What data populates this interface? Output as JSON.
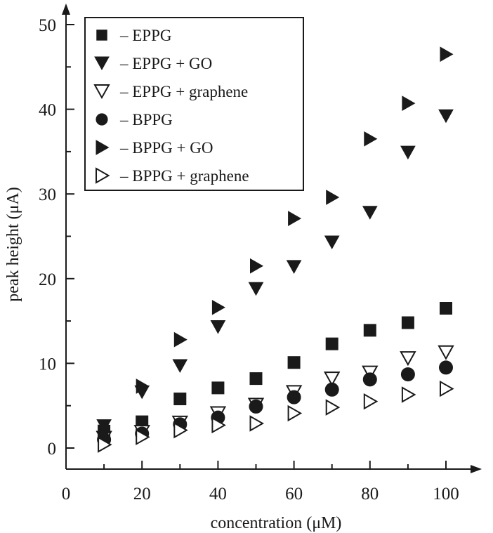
{
  "chart_data": {
    "type": "scatter",
    "xlabel": "concentration (μM)",
    "ylabel": "peak height (μA)",
    "xlim": [
      0,
      110
    ],
    "ylim": [
      -2.5,
      53
    ],
    "xticks": [
      "0",
      "20",
      "40",
      "60",
      "80",
      "100"
    ],
    "yticks": [
      "0",
      "10",
      "20",
      "30",
      "40",
      "50"
    ],
    "legend_position": "top-left",
    "grid": false,
    "colors": {
      "marker": "#1a1a1a",
      "axis": "#1a1a1a",
      "background": "#ffffff"
    },
    "series": [
      {
        "name": "– EPPG",
        "marker": "square-filled",
        "x": [
          10,
          20,
          30,
          40,
          50,
          60,
          70,
          80,
          90,
          100
        ],
        "y": [
          2.0,
          3.1,
          5.8,
          7.1,
          8.2,
          10.1,
          12.3,
          13.9,
          14.8,
          16.5
        ]
      },
      {
        "name": "– EPPG + GO",
        "marker": "triangle-down-filled",
        "x": [
          10,
          20,
          30,
          40,
          50,
          60,
          70,
          80,
          90,
          100
        ],
        "y": [
          2.6,
          6.6,
          9.7,
          14.3,
          18.8,
          21.4,
          24.3,
          27.8,
          34.9,
          39.2
        ]
      },
      {
        "name": "– EPPG + graphene",
        "marker": "triangle-down-open",
        "x": [
          10,
          20,
          30,
          40,
          50,
          60,
          70,
          80,
          90,
          100
        ],
        "y": [
          1.2,
          1.9,
          3.0,
          4.1,
          5.1,
          6.6,
          8.2,
          8.9,
          10.6,
          11.3
        ]
      },
      {
        "name": "– BPPG",
        "marker": "circle-filled",
        "x": [
          10,
          20,
          30,
          40,
          50,
          60,
          70,
          80,
          90,
          100
        ],
        "y": [
          1.0,
          1.7,
          2.8,
          3.6,
          4.9,
          6.0,
          6.9,
          8.1,
          8.7,
          9.5
        ]
      },
      {
        "name": "– BPPG + GO",
        "marker": "triangle-right-filled",
        "x": [
          10,
          20,
          30,
          40,
          50,
          60,
          70,
          80,
          90,
          100
        ],
        "y": [
          1.9,
          7.3,
          12.8,
          16.6,
          21.5,
          27.1,
          29.6,
          36.5,
          40.7,
          46.5
        ]
      },
      {
        "name": "– BPPG + graphene",
        "marker": "triangle-right-open",
        "x": [
          10,
          20,
          30,
          40,
          50,
          60,
          70,
          80,
          90,
          100
        ],
        "y": [
          0.4,
          1.3,
          2.1,
          2.7,
          2.9,
          4.1,
          4.8,
          5.5,
          6.3,
          7.0
        ]
      }
    ]
  }
}
